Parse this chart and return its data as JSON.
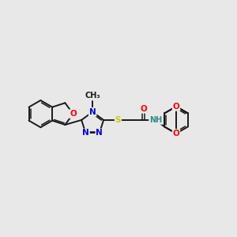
{
  "background_color": "#e8e8e8",
  "bond_color": "#1a1a1a",
  "atom_colors": {
    "N": "#0000dd",
    "O": "#ff0000",
    "S": "#cccc00",
    "NH": "#2e8b8b",
    "C": "#1a1a1a"
  },
  "font_size": 7.5,
  "figsize": [
    3.0,
    3.0
  ],
  "dpi": 100
}
